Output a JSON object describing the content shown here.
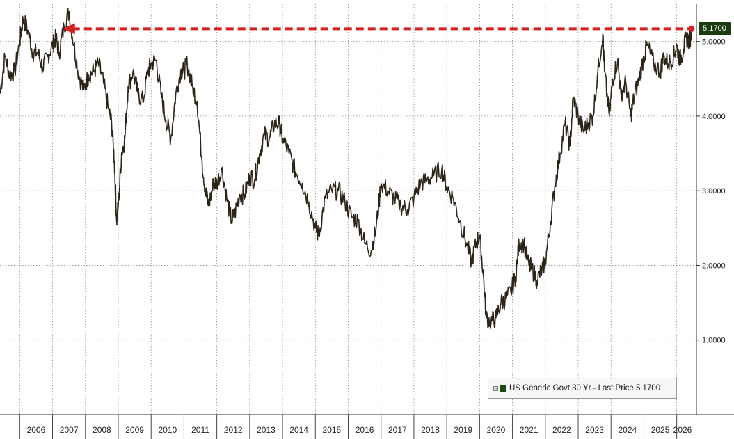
{
  "chart_data": {
    "type": "line",
    "x_range": [
      2005.4,
      2026.6
    ],
    "ylim": [
      0.0,
      5.5
    ],
    "yticks": [
      "1.0000",
      "2.0000",
      "3.0000",
      "4.0000",
      "5.0000"
    ],
    "ytick_values": [
      1.0,
      2.0,
      3.0,
      4.0,
      5.0
    ],
    "year_labels": [
      "2006",
      "2007",
      "2008",
      "2009",
      "2010",
      "2011",
      "2012",
      "2013",
      "2014",
      "2015",
      "2016",
      "2017",
      "2018",
      "2019",
      "2020",
      "2021",
      "2022",
      "2023",
      "2024",
      "2025",
      "2026"
    ],
    "grid": true,
    "legend_placement": "bottom-right",
    "series": [
      {
        "name": "US Generic Govt 30 Yr - Last Price 5.1700",
        "color": "#2d2418",
        "x": [
          2005.4,
          2005.55,
          2005.7,
          2005.85,
          2006.0,
          2006.1,
          2006.25,
          2006.4,
          2006.55,
          2006.7,
          2006.85,
          2007.0,
          2007.1,
          2007.2,
          2007.35,
          2007.5,
          2007.65,
          2007.8,
          2007.95,
          2008.1,
          2008.25,
          2008.4,
          2008.55,
          2008.7,
          2008.8,
          2008.88,
          2008.95,
          2009.0,
          2009.1,
          2009.2,
          2009.3,
          2009.45,
          2009.6,
          2009.75,
          2009.9,
          2010.0,
          2010.15,
          2010.3,
          2010.45,
          2010.6,
          2010.75,
          2010.9,
          2011.0,
          2011.1,
          2011.25,
          2011.4,
          2011.55,
          2011.65,
          2011.75,
          2011.9,
          2012.0,
          2012.15,
          2012.3,
          2012.45,
          2012.55,
          2012.7,
          2012.85,
          2013.0,
          2013.15,
          2013.3,
          2013.45,
          2013.6,
          2013.75,
          2013.9,
          2014.0,
          2014.2,
          2014.4,
          2014.6,
          2014.8,
          2015.0,
          2015.1,
          2015.3,
          2015.5,
          2015.7,
          2015.9,
          2016.1,
          2016.3,
          2016.5,
          2016.7,
          2016.85,
          2017.0,
          2017.2,
          2017.4,
          2017.6,
          2017.8,
          2018.0,
          2018.2,
          2018.4,
          2018.6,
          2018.85,
          2019.0,
          2019.2,
          2019.4,
          2019.6,
          2019.75,
          2019.9,
          2020.0,
          2020.1,
          2020.2,
          2020.35,
          2020.5,
          2020.65,
          2020.8,
          2020.95,
          2021.1,
          2021.2,
          2021.35,
          2021.5,
          2021.6,
          2021.75,
          2021.9,
          2022.0,
          2022.15,
          2022.3,
          2022.45,
          2022.6,
          2022.75,
          2022.85,
          2023.0,
          2023.15,
          2023.3,
          2023.45,
          2023.6,
          2023.75,
          2023.8,
          2023.95,
          2024.05,
          2024.2,
          2024.3,
          2024.45,
          2024.6,
          2024.7,
          2024.85,
          2025.0,
          2025.1,
          2025.3,
          2025.5,
          2025.6,
          2025.75,
          2025.9,
          2026.0,
          2026.1,
          2026.2,
          2026.3,
          2026.4,
          2026.45
        ],
        "values": [
          4.3,
          4.8,
          4.55,
          4.6,
          5.0,
          5.3,
          5.15,
          4.85,
          4.85,
          4.65,
          4.8,
          4.95,
          5.05,
          4.85,
          5.2,
          5.4,
          4.95,
          4.55,
          4.35,
          4.55,
          4.6,
          4.7,
          4.45,
          4.1,
          3.9,
          3.4,
          2.6,
          2.8,
          3.5,
          3.7,
          4.4,
          4.6,
          4.3,
          4.2,
          4.6,
          4.7,
          4.75,
          4.3,
          3.95,
          3.7,
          4.3,
          4.6,
          4.6,
          4.7,
          4.4,
          4.2,
          3.4,
          3.0,
          2.8,
          3.1,
          3.1,
          3.3,
          2.9,
          2.6,
          2.7,
          2.95,
          2.95,
          3.2,
          3.15,
          3.5,
          3.75,
          3.7,
          3.9,
          3.9,
          3.7,
          3.5,
          3.25,
          3.1,
          2.85,
          2.5,
          2.4,
          2.9,
          3.0,
          3.0,
          2.85,
          2.65,
          2.6,
          2.3,
          2.2,
          2.5,
          3.1,
          3.0,
          2.9,
          2.8,
          2.75,
          2.9,
          3.1,
          3.15,
          3.2,
          3.3,
          3.05,
          2.9,
          2.6,
          2.3,
          2.05,
          2.3,
          2.4,
          1.95,
          1.3,
          1.25,
          1.3,
          1.5,
          1.55,
          1.65,
          1.85,
          2.3,
          2.3,
          2.0,
          1.95,
          1.8,
          1.95,
          2.05,
          2.55,
          3.1,
          3.5,
          3.9,
          3.6,
          4.25,
          4.0,
          3.8,
          3.9,
          4.0,
          4.6,
          5.1,
          4.6,
          4.0,
          4.5,
          4.75,
          4.3,
          4.45,
          4.0,
          4.25,
          4.5,
          4.8,
          4.95,
          4.7,
          4.6,
          4.8,
          4.7,
          4.8,
          4.95,
          4.75,
          4.9,
          5.05,
          5.0,
          5.17
        ]
      }
    ],
    "last_price": 5.17,
    "last_price_label": "5.1700",
    "last_price_color": "#1a3a10",
    "reference_line": {
      "from_x": 2007.3,
      "to_x": 2026.45,
      "value": 5.17,
      "color": "#d42020"
    },
    "legend": {
      "label": "US Generic Govt 30 Yr - Last Price 5.1700",
      "swatch_color": "#1a4a10"
    }
  }
}
